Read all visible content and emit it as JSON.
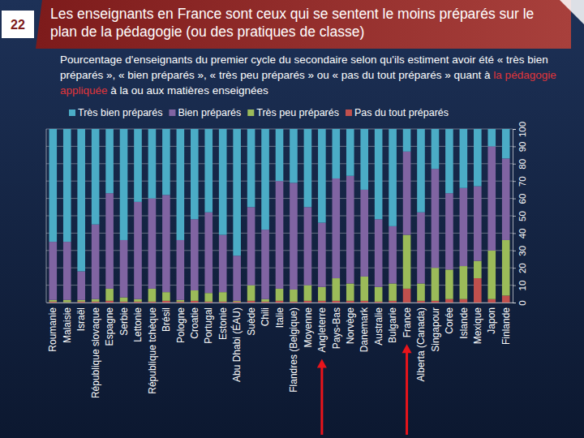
{
  "chart_data": {
    "type": "bar",
    "slide_number": "22",
    "title": "Les enseignants en France sont ceux qui se sentent le moins préparés sur le plan de la pédagogie (ou des pratiques de classe)",
    "subtitle": [
      "Pourcentage d'enseignants du premier cycle du secondaire selon qu'ils estiment avoir été « très bien préparés », « bien préparés », « très peu préparés » ou « pas du tout préparés » quant à ",
      "la pédagogie appliquée",
      " à la ou aux matières enseignées"
    ],
    "categories": [
      "Roumanie",
      "Malaisie",
      "Israël",
      "République slovaque",
      "Espagne",
      "Serbie",
      "Lettonie",
      "République tchèque",
      "Brésil",
      "Pologne",
      "Croatie",
      "Portugal",
      "Estonie",
      "Abu Dhabi (ÉAU)",
      "Suède",
      "Chili",
      "Italie",
      "Flandres (Belgique)",
      "Moyenne",
      "Angleterre",
      "Pays-Bas",
      "Norvège",
      "Danemark",
      "Australie",
      "Bulgarie",
      "France",
      "Alberta (Canada)",
      "Singapour",
      "Corée",
      "Islande",
      "Mexique",
      "Japon",
      "Finlande"
    ],
    "series": [
      {
        "name": "Très bien préparés",
        "color": "#4bacc6",
        "values": [
          65,
          65,
          82,
          55,
          37,
          64,
          42,
          40,
          38,
          64,
          52,
          48,
          61,
          73,
          45,
          58,
          30,
          31,
          45,
          54,
          28.5,
          27,
          35,
          52,
          56,
          13,
          48,
          23,
          37,
          34,
          33,
          10,
          17
        ]
      },
      {
        "name": "Bien préparés",
        "color": "#8064a2",
        "values": [
          33.5,
          33.5,
          16.5,
          43,
          55,
          33,
          56,
          52,
          56,
          34.5,
          41,
          46.5,
          33,
          26,
          45,
          40,
          62,
          61.5,
          45,
          37,
          57.5,
          62,
          50,
          39,
          33,
          48,
          41,
          57,
          44,
          45,
          43,
          60,
          47
        ]
      },
      {
        "name": "Très peu préparés",
        "color": "#9bbb59",
        "values": [
          1,
          1.3,
          1,
          1.5,
          7,
          2.5,
          1.5,
          7.5,
          5,
          1,
          6,
          5,
          5.5,
          0.5,
          9,
          1.5,
          7,
          7,
          9,
          8,
          13,
          10,
          14,
          8.5,
          10,
          31,
          10,
          19,
          17,
          19,
          10,
          28,
          32
        ]
      },
      {
        "name": "Pas du tout préparés",
        "color": "#c0504d",
        "values": [
          0.5,
          0.2,
          0.5,
          0.5,
          1,
          0.5,
          0.5,
          0.5,
          1,
          0.5,
          1,
          0.5,
          0.5,
          0.5,
          1,
          0.5,
          1,
          0.5,
          1,
          1,
          1,
          1,
          1,
          0.5,
          1,
          8,
          1,
          1,
          2,
          2,
          14,
          2,
          4
        ]
      }
    ],
    "stacked": true,
    "grid": true,
    "legend": "top",
    "ylim": [
      0,
      100
    ],
    "yticks": [
      0,
      10,
      20,
      30,
      40,
      50,
      60,
      70,
      80,
      90,
      100
    ],
    "annotations": [
      {
        "type": "arrow",
        "category": "Angleterre"
      },
      {
        "type": "arrow",
        "category": "France"
      }
    ]
  }
}
